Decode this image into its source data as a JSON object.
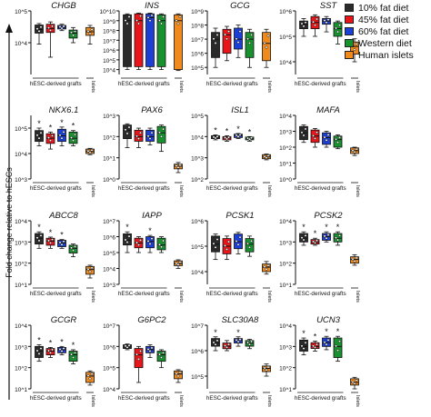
{
  "figure": {
    "y_axis_label": "Fold change relative to hESCs"
  },
  "legend": [
    {
      "label": "10% fat diet",
      "color": "#2a2a2a"
    },
    {
      "label": "45% fat diet",
      "color": "#e8161b"
    },
    {
      "label": "60% fat diet",
      "color": "#1c3fd6"
    },
    {
      "label": "Western diet",
      "color": "#17922e"
    },
    {
      "label": "Human islets",
      "color": "#f08a1c"
    }
  ],
  "group_labels": {
    "grafts": "hESC-derived grafts",
    "islets": "Islets"
  },
  "chart_data": [
    {
      "type": "box",
      "title": "CHGB",
      "yscale": "log",
      "ticks": [
        "10^4",
        "10^5"
      ],
      "ylim_exp": [
        3,
        5
      ],
      "series": [
        {
          "name": "10% fat diet",
          "q1": 20000,
          "median": 26000,
          "q3": 36000,
          "min": 9000,
          "max": 40000
        },
        {
          "name": "45% fat diet",
          "q1": 21000,
          "median": 28000,
          "q3": 38000,
          "min": 3500,
          "max": 45000
        },
        {
          "name": "60% fat diet",
          "q1": 27000,
          "median": 30000,
          "q3": 35000,
          "min": 24000,
          "max": 38000
        },
        {
          "name": "Western diet",
          "q1": 14000,
          "median": 20000,
          "q3": 25000,
          "min": 10000,
          "max": 30000
        },
        {
          "name": "Human islets",
          "q1": 17000,
          "median": 22000,
          "q3": 30000,
          "min": 9000,
          "max": 35000
        }
      ],
      "stars": []
    },
    {
      "type": "box",
      "title": "INS",
      "yscale": "log",
      "ticks": [
        "10^4",
        "10^5",
        "10^6",
        "10^7",
        "10^8",
        "10^9",
        "10^10"
      ],
      "ylim_exp": [
        3.5,
        10
      ],
      "series": [
        {
          "name": "10% fat diet",
          "q1": 20000,
          "median": 1000000000,
          "q3": 4000000000,
          "min": 10000,
          "max": 5000000000
        },
        {
          "name": "45% fat diet",
          "q1": 20000,
          "median": 1000000000,
          "q3": 5000000000,
          "min": 10000,
          "max": 6000000000
        },
        {
          "name": "60% fat diet",
          "q1": 20000,
          "median": 2000000000,
          "q3": 5000000000,
          "min": 10000,
          "max": 6000000000
        },
        {
          "name": "Western diet",
          "q1": 20000,
          "median": 1000000000,
          "q3": 4000000000,
          "min": 10000,
          "max": 5000000000
        },
        {
          "name": "Human islets",
          "q1": 10000,
          "median": 1000000000,
          "q3": 4000000000,
          "min": 8000,
          "max": 5000000000
        }
      ],
      "stars": []
    },
    {
      "type": "box",
      "title": "GCG",
      "yscale": "log",
      "ticks": [
        "10^5",
        "10^6",
        "10^7",
        "10^8",
        "10^9"
      ],
      "ylim_exp": [
        4.5,
        9
      ],
      "series": [
        {
          "name": "10% fat diet",
          "q1": 500000,
          "median": 10000000,
          "q3": 30000000,
          "min": 100000,
          "max": 60000000
        },
        {
          "name": "45% fat diet",
          "q1": 1000000,
          "median": 20000000,
          "q3": 50000000,
          "min": 300000,
          "max": 80000000
        },
        {
          "name": "60% fat diet",
          "q1": 2000000,
          "median": 10000000,
          "q3": 60000000,
          "min": 500000,
          "max": 100000000
        },
        {
          "name": "Western diet",
          "q1": 500000,
          "median": 10000000,
          "q3": 30000000,
          "min": 100000,
          "max": 50000000
        },
        {
          "name": "Human islets",
          "q1": 300000,
          "median": 5000000,
          "q3": 30000000,
          "min": 100000,
          "max": 50000000
        }
      ],
      "stars": []
    },
    {
      "type": "box",
      "title": "SST",
      "yscale": "log",
      "ticks": [
        "10^4",
        "10^5",
        "10^6"
      ],
      "ylim_exp": [
        3.5,
        6
      ],
      "series": [
        {
          "name": "10% fat diet",
          "q1": 200000,
          "median": 300000,
          "q3": 400000,
          "min": 100000,
          "max": 500000
        },
        {
          "name": "45% fat diet",
          "q1": 200000,
          "median": 350000,
          "q3": 600000,
          "min": 100000,
          "max": 700000
        },
        {
          "name": "60% fat diet",
          "q1": 300000,
          "median": 400000,
          "q3": 500000,
          "min": 150000,
          "max": 600000
        },
        {
          "name": "Western diet",
          "q1": 100000,
          "median": 200000,
          "q3": 350000,
          "min": 50000,
          "max": 400000
        },
        {
          "name": "Human islets",
          "q1": 20000,
          "median": 40000,
          "q3": 60000,
          "min": 10000,
          "max": 80000
        }
      ],
      "stars": []
    },
    {
      "type": "box",
      "title": "NKX6.1",
      "yscale": "log",
      "ticks": [
        "10^3",
        "10^4",
        "10^5"
      ],
      "ylim_exp": [
        3,
        5.5
      ],
      "series": [
        {
          "name": "10% fat diet",
          "q1": 30000,
          "median": 50000,
          "q3": 80000,
          "min": 20000,
          "max": 100000
        },
        {
          "name": "45% fat diet",
          "q1": 25000,
          "median": 40000,
          "q3": 60000,
          "min": 15000,
          "max": 70000
        },
        {
          "name": "60% fat diet",
          "q1": 30000,
          "median": 50000,
          "q3": 90000,
          "min": 20000,
          "max": 110000
        },
        {
          "name": "Western diet",
          "q1": 25000,
          "median": 40000,
          "q3": 70000,
          "min": 20000,
          "max": 80000
        },
        {
          "name": "Human islets",
          "q1": 10000,
          "median": 12000,
          "q3": 15000,
          "min": 9000,
          "max": 16000
        }
      ],
      "stars": [
        0,
        1,
        2,
        3
      ]
    },
    {
      "type": "box",
      "title": "PAX6",
      "yscale": "log",
      "ticks": [
        "10^0",
        "10^1",
        "10^2",
        "10^3"
      ],
      "ylim_exp": [
        0,
        3
      ],
      "series": [
        {
          "name": "10% fat diet",
          "q1": 80,
          "median": 200,
          "q3": 350,
          "min": 30,
          "max": 400
        },
        {
          "name": "45% fat diet",
          "q1": 60,
          "median": 100,
          "q3": 200,
          "min": 30,
          "max": 250
        },
        {
          "name": "60% fat diet",
          "q1": 60,
          "median": 100,
          "q3": 200,
          "min": 40,
          "max": 250
        },
        {
          "name": "Western diet",
          "q1": 50,
          "median": 150,
          "q3": 300,
          "min": 20,
          "max": 350
        },
        {
          "name": "Human islets",
          "q1": 3,
          "median": 4,
          "q3": 5,
          "min": 2,
          "max": 6
        }
      ],
      "stars": []
    },
    {
      "type": "box",
      "title": "ISL1",
      "yscale": "log",
      "ticks": [
        "10^2",
        "10^3",
        "10^4",
        "10^5"
      ],
      "ylim_exp": [
        2,
        5
      ],
      "series": [
        {
          "name": "10% fat diet",
          "q1": 8000,
          "median": 9000,
          "q3": 11000,
          "min": 7000,
          "max": 12000
        },
        {
          "name": "45% fat diet",
          "q1": 7000,
          "median": 8500,
          "q3": 10000,
          "min": 6000,
          "max": 11000
        },
        {
          "name": "60% fat diet",
          "q1": 9000,
          "median": 11000,
          "q3": 13000,
          "min": 8000,
          "max": 14000
        },
        {
          "name": "Western diet",
          "q1": 7000,
          "median": 8000,
          "q3": 9500,
          "min": 6000,
          "max": 10000
        },
        {
          "name": "Human islets",
          "q1": 900,
          "median": 1100,
          "q3": 1400,
          "min": 800,
          "max": 1500
        }
      ],
      "stars": [
        0,
        1,
        2,
        3
      ]
    },
    {
      "type": "box",
      "title": "MAFA",
      "yscale": "log",
      "ticks": [
        "10^0",
        "10^1",
        "10^2",
        "10^3",
        "10^4"
      ],
      "ylim_exp": [
        0,
        4
      ],
      "series": [
        {
          "name": "10% fat diet",
          "q1": 300,
          "median": 800,
          "q3": 2000,
          "min": 200,
          "max": 2500
        },
        {
          "name": "45% fat diet",
          "q1": 200,
          "median": 500,
          "q3": 1200,
          "min": 100,
          "max": 1500
        },
        {
          "name": "60% fat diet",
          "q1": 150,
          "median": 400,
          "q3": 800,
          "min": 100,
          "max": 1000
        },
        {
          "name": "Western diet",
          "q1": 100,
          "median": 300,
          "q3": 500,
          "min": 80,
          "max": 600
        },
        {
          "name": "Human islets",
          "q1": 40,
          "median": 60,
          "q3": 90,
          "min": 30,
          "max": 100
        }
      ],
      "stars": []
    },
    {
      "type": "box",
      "title": "ABCC8",
      "yscale": "log",
      "ticks": [
        "10^1",
        "10^2",
        "10^3",
        "10^4"
      ],
      "ylim_exp": [
        1,
        4
      ],
      "series": [
        {
          "name": "10% fat diet",
          "q1": 800,
          "median": 1500,
          "q3": 2500,
          "min": 500,
          "max": 3000
        },
        {
          "name": "45% fat diet",
          "q1": 700,
          "median": 1100,
          "q3": 1500,
          "min": 500,
          "max": 1700
        },
        {
          "name": "60% fat diet",
          "q1": 600,
          "median": 900,
          "q3": 1200,
          "min": 500,
          "max": 1300
        },
        {
          "name": "Western diet",
          "q1": 300,
          "median": 500,
          "q3": 700,
          "min": 200,
          "max": 800
        },
        {
          "name": "Human islets",
          "q1": 30,
          "median": 50,
          "q3": 70,
          "min": 20,
          "max": 80
        }
      ],
      "stars": [
        0,
        1,
        2
      ]
    },
    {
      "type": "box",
      "title": "IAPP",
      "yscale": "log",
      "ticks": [
        "10^3",
        "10^4",
        "10^5",
        "10^6",
        "10^7"
      ],
      "ylim_exp": [
        3,
        7
      ],
      "series": [
        {
          "name": "10% fat diet",
          "q1": 300000,
          "median": 600000,
          "q3": 1500000,
          "min": 100000,
          "max": 2000000
        },
        {
          "name": "45% fat diet",
          "q1": 200000,
          "median": 400000,
          "q3": 800000,
          "min": 100000,
          "max": 1000000
        },
        {
          "name": "60% fat diet",
          "q1": 200000,
          "median": 500000,
          "q3": 1000000,
          "min": 100000,
          "max": 1200000
        },
        {
          "name": "Western diet",
          "q1": 150000,
          "median": 300000,
          "q3": 800000,
          "min": 100000,
          "max": 1000000
        },
        {
          "name": "Human islets",
          "q1": 15000,
          "median": 20000,
          "q3": 30000,
          "min": 10000,
          "max": 35000
        }
      ],
      "stars": [
        0,
        2
      ]
    },
    {
      "type": "box",
      "title": "PCSK1",
      "yscale": "log",
      "ticks": [
        "10^4",
        "10^5",
        "10^6"
      ],
      "ylim_exp": [
        3.5,
        6
      ],
      "series": [
        {
          "name": "10% fat diet",
          "q1": 60000,
          "median": 120000,
          "q3": 250000,
          "min": 30000,
          "max": 300000
        },
        {
          "name": "45% fat diet",
          "q1": 50000,
          "median": 100000,
          "q3": 200000,
          "min": 30000,
          "max": 250000
        },
        {
          "name": "60% fat diet",
          "q1": 80000,
          "median": 150000,
          "q3": 300000,
          "min": 50000,
          "max": 350000
        },
        {
          "name": "Western diet",
          "q1": 60000,
          "median": 120000,
          "q3": 200000,
          "min": 40000,
          "max": 250000
        },
        {
          "name": "Human islets",
          "q1": 10000,
          "median": 15000,
          "q3": 20000,
          "min": 8000,
          "max": 25000
        }
      ],
      "stars": []
    },
    {
      "type": "box",
      "title": "PCSK2",
      "yscale": "log",
      "ticks": [
        "10^1",
        "10^2",
        "10^3",
        "10^4"
      ],
      "ylim_exp": [
        1,
        4
      ],
      "series": [
        {
          "name": "10% fat diet",
          "q1": 1000,
          "median": 1500,
          "q3": 2500,
          "min": 700,
          "max": 3000
        },
        {
          "name": "45% fat diet",
          "q1": 800,
          "median": 1000,
          "q3": 1300,
          "min": 700,
          "max": 1500
        },
        {
          "name": "60% fat diet",
          "q1": 1200,
          "median": 1800,
          "q3": 2500,
          "min": 1000,
          "max": 3000
        },
        {
          "name": "Western diet",
          "q1": 1000,
          "median": 1500,
          "q3": 2500,
          "min": 700,
          "max": 3000
        },
        {
          "name": "Human islets",
          "q1": 100,
          "median": 150,
          "q3": 200,
          "min": 80,
          "max": 250
        }
      ],
      "stars": [
        0,
        1,
        2,
        3
      ]
    },
    {
      "type": "box",
      "title": "GCGR",
      "yscale": "log",
      "ticks": [
        "10^1",
        "10^2",
        "10^3",
        "10^4"
      ],
      "ylim_exp": [
        1,
        4
      ],
      "series": [
        {
          "name": "10% fat diet",
          "q1": 300,
          "median": 600,
          "q3": 1000,
          "min": 200,
          "max": 1200
        },
        {
          "name": "45% fat diet",
          "q1": 400,
          "median": 600,
          "q3": 800,
          "min": 300,
          "max": 900
        },
        {
          "name": "60% fat diet",
          "q1": 500,
          "median": 700,
          "q3": 900,
          "min": 400,
          "max": 1000
        },
        {
          "name": "Western diet",
          "q1": 200,
          "median": 400,
          "q3": 600,
          "min": 150,
          "max": 700
        },
        {
          "name": "Human islets",
          "q1": 20,
          "median": 40,
          "q3": 60,
          "min": 15,
          "max": 70
        }
      ],
      "stars": [
        0,
        1,
        2,
        3
      ]
    },
    {
      "type": "box",
      "title": "G6PC2",
      "yscale": "log",
      "ticks": [
        "10^4",
        "10^5",
        "10^6",
        "10^7"
      ],
      "ylim_exp": [
        4,
        7
      ],
      "series": [
        {
          "name": "10% fat diet",
          "q1": 800000,
          "median": 1000000,
          "q3": 1200000,
          "min": 700000,
          "max": 1300000
        },
        {
          "name": "45% fat diet",
          "q1": 100000,
          "median": 400000,
          "q3": 800000,
          "min": 20000,
          "max": 1000000
        },
        {
          "name": "60% fat diet",
          "q1": 500000,
          "median": 700000,
          "q3": 1000000,
          "min": 300000,
          "max": 1200000
        },
        {
          "name": "Western diet",
          "q1": 200000,
          "median": 400000,
          "q3": 600000,
          "min": 100000,
          "max": 700000
        },
        {
          "name": "Human islets",
          "q1": 30000,
          "median": 50000,
          "q3": 70000,
          "min": 20000,
          "max": 80000
        }
      ],
      "stars": []
    },
    {
      "type": "box",
      "title": "SLC30A8",
      "yscale": "log",
      "ticks": [
        "10^5",
        "10^6",
        "10^7"
      ],
      "ylim_exp": [
        4.5,
        7
      ],
      "series": [
        {
          "name": "10% fat diet",
          "q1": 1500000,
          "median": 2000000,
          "q3": 3000000,
          "min": 1000000,
          "max": 3500000
        },
        {
          "name": "45% fat diet",
          "q1": 1200000,
          "median": 1500000,
          "q3": 2000000,
          "min": 1000000,
          "max": 2500000
        },
        {
          "name": "60% fat diet",
          "q1": 2000000,
          "median": 2500000,
          "q3": 3000000,
          "min": 1500000,
          "max": 3500000
        },
        {
          "name": "Western diet",
          "q1": 1500000,
          "median": 2000000,
          "q3": 2500000,
          "min": 1200000,
          "max": 2800000
        },
        {
          "name": "Human islets",
          "q1": 150000,
          "median": 200000,
          "q3": 250000,
          "min": 100000,
          "max": 300000
        }
      ],
      "stars": [
        0,
        2
      ]
    },
    {
      "type": "box",
      "title": "UCN3",
      "yscale": "log",
      "ticks": [
        "10^1",
        "10^2",
        "10^3",
        "10^4"
      ],
      "ylim_exp": [
        1,
        4
      ],
      "series": [
        {
          "name": "10% fat diet",
          "q1": 600,
          "median": 1000,
          "q3": 2000,
          "min": 400,
          "max": 2500
        },
        {
          "name": "45% fat diet",
          "q1": 800,
          "median": 1000,
          "q3": 1500,
          "min": 600,
          "max": 1800
        },
        {
          "name": "60% fat diet",
          "q1": 1000,
          "median": 1500,
          "q3": 2500,
          "min": 700,
          "max": 3000
        },
        {
          "name": "Western diet",
          "q1": 300,
          "median": 1000,
          "q3": 2500,
          "min": 200,
          "max": 3000
        },
        {
          "name": "Human islets",
          "q1": 15,
          "median": 20,
          "q3": 30,
          "min": 10,
          "max": 35
        }
      ],
      "stars": [
        0,
        1,
        2,
        3
      ]
    }
  ]
}
